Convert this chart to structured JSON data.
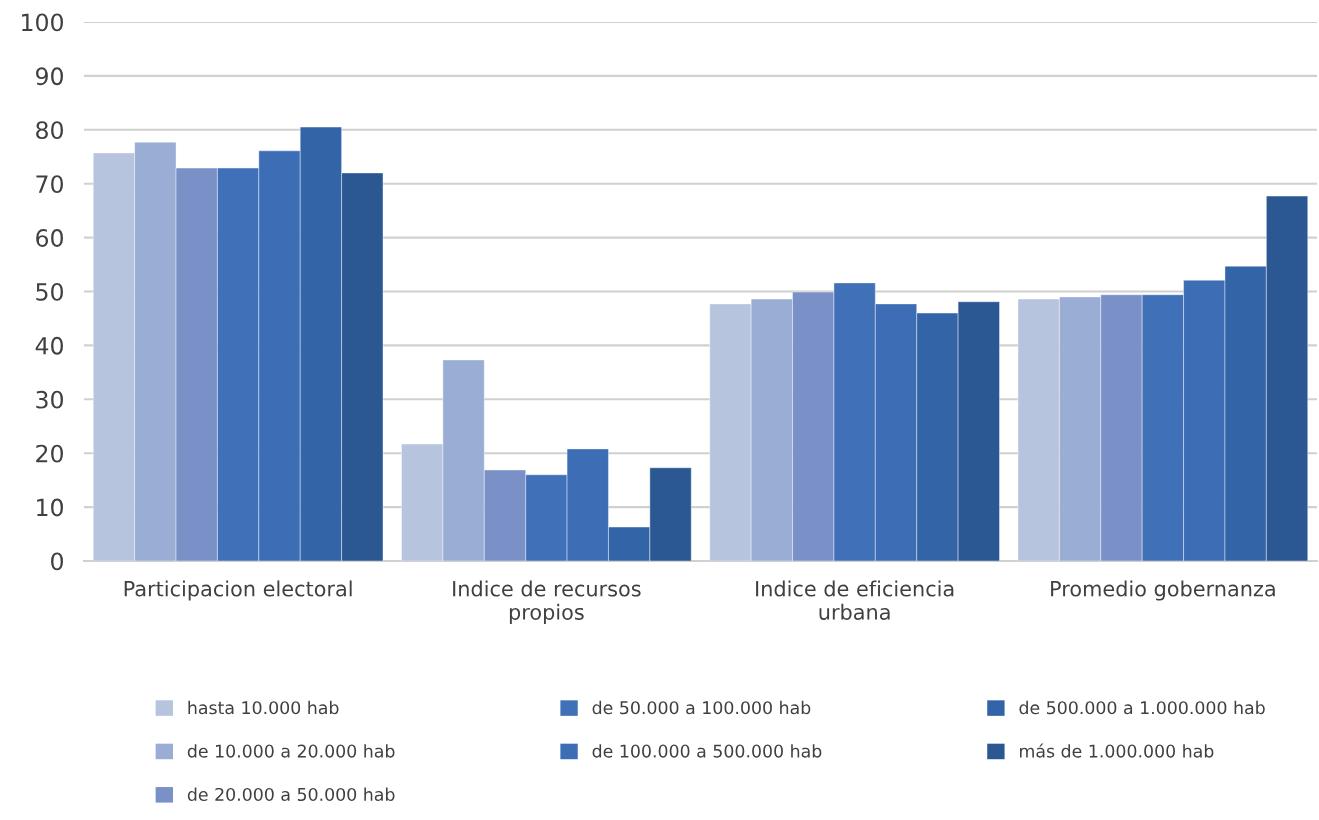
{
  "chart_data": {
    "type": "bar",
    "categories": [
      "Participacion electoral",
      "Indice de recursos\npropios",
      "Indice de eficiencia\nurbana",
      "Promedio gobernanza"
    ],
    "series": [
      {
        "name": "hasta 10.000 hab",
        "color": "#b6c4de",
        "values": [
          75.7,
          21.7,
          47.7,
          48.6
        ]
      },
      {
        "name": "de 10.000 a 20.000 hab",
        "color": "#9aadd5",
        "values": [
          77.7,
          37.3,
          48.6,
          49.0
        ]
      },
      {
        "name": "de 20.000 a 50.000 hab",
        "color": "#7a91c8",
        "values": [
          72.9,
          16.9,
          49.9,
          49.4
        ]
      },
      {
        "name": "de 50.000 a 100.000 hab",
        "color": "#4071b8",
        "values": [
          72.9,
          16.0,
          51.6,
          49.4
        ]
      },
      {
        "name": "de 100.000 a 500.000 hab",
        "color": "#3c6db5",
        "values": [
          76.1,
          20.8,
          47.7,
          52.1
        ]
      },
      {
        "name": "de 500.000 a 1.000.000 hab",
        "color": "#3464a8",
        "values": [
          80.5,
          6.3,
          46.0,
          54.7
        ]
      },
      {
        "name": "más de 1.000.000 hab",
        "color": "#2b5892",
        "values": [
          72.0,
          17.3,
          48.1,
          67.7
        ]
      }
    ],
    "ylim": [
      0,
      100
    ],
    "yticks": [
      0,
      10,
      20,
      30,
      40,
      50,
      60,
      70,
      80,
      90,
      100
    ],
    "grid": "y",
    "legend": "bottom"
  }
}
